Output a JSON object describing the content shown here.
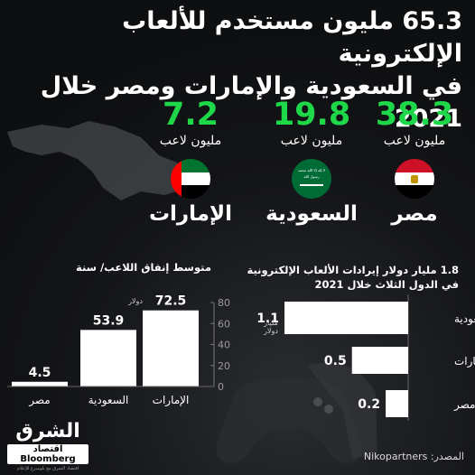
{
  "title_line1": "65.3 مليون مستخدم للألعاب الإلكترونية",
  "title_line2": "في السعودية والإمارات ومصر خلال 2021",
  "players": [
    {
      "name": "مصر",
      "value": "38.3",
      "unit": "مليون لاعب",
      "flag": "egypt-flag"
    },
    {
      "name": "السعودية",
      "value": "19.8",
      "unit": "مليون لاعب",
      "flag": "saudi-flag"
    },
    {
      "name": "الإمارات",
      "value": "7.2",
      "unit": "مليون لاعب",
      "flag": "uae-flag"
    }
  ],
  "saudi_flag_script": "لا إله إلا الله محمد رسول الله",
  "spending_title": "متوسط إنفاق اللاعب/ سنة",
  "revenue_title_line1": "1.8 مليار دولار إيرادات الألعاب الإلكترونية",
  "revenue_title_line2": "في الدول الثلاث خلال 2021",
  "spending_unit_label": "دولار",
  "revenue_unit_label_1": "مليار",
  "revenue_unit_label_2": "دولار",
  "source": "المصدر: Nikopartners",
  "logo": {
    "main": "الشرق",
    "sub_ar": "اقتصاد",
    "sub": "Bloomberg",
    "fine": "اقتصاد الشرق مع بلومبرغ للإعلام"
  },
  "colors": {
    "accent_green": "#1fd84a",
    "bar": "#ffffff",
    "background": "#0e0f11"
  },
  "chart_data": [
    {
      "type": "bar",
      "title": "متوسط إنفاق اللاعب/ سنة",
      "categories": [
        "الإمارات",
        "السعودية",
        "مصر"
      ],
      "values": [
        72.5,
        53.9,
        4.5
      ],
      "ylim": [
        0,
        80
      ],
      "yticks": [
        0,
        20,
        40,
        60,
        80
      ],
      "grid": false
    },
    {
      "type": "bar",
      "orientation": "horizontal",
      "title": "1.8 مليار دولار إيرادات الألعاب الإلكترونية في الدول الثلاث خلال 2021",
      "categories": [
        "السعودية",
        "الإمارات",
        "مصر"
      ],
      "values": [
        1.1,
        0.5,
        0.2
      ],
      "grid": false
    }
  ]
}
